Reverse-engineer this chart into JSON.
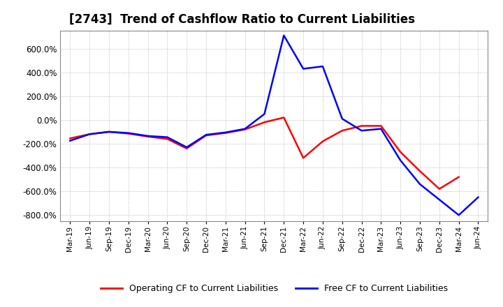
{
  "title": "[2743]  Trend of Cashflow Ratio to Current Liabilities",
  "title_fontsize": 12,
  "legend_labels": [
    "Operating CF to Current Liabilities",
    "Free CF to Current Liabilities"
  ],
  "legend_colors": [
    "#ff0000",
    "#0000ff"
  ],
  "ylim": [
    -850,
    750
  ],
  "yticks": [
    -800,
    -600,
    -400,
    -200,
    0,
    200,
    400,
    600
  ],
  "background_color": "#ffffff",
  "grid_color": "#aaaaaa",
  "x_labels": [
    "Mar-19",
    "Jun-19",
    "Sep-19",
    "Dec-19",
    "Mar-20",
    "Jun-20",
    "Sep-20",
    "Dec-20",
    "Mar-21",
    "Jun-21",
    "Sep-21",
    "Dec-21",
    "Mar-22",
    "Jun-22",
    "Sep-22",
    "Dec-22",
    "Mar-23",
    "Jun-23",
    "Sep-23",
    "Dec-23",
    "Mar-24",
    "Jun-24"
  ],
  "operating_cf": [
    -155,
    -120,
    -100,
    -115,
    -140,
    -160,
    -240,
    -130,
    -110,
    -80,
    -20,
    20,
    -320,
    -180,
    -90,
    -50,
    -50,
    -270,
    -430,
    -580,
    -480,
    null
  ],
  "free_cf": [
    -175,
    -120,
    -100,
    -110,
    -135,
    -145,
    -230,
    -125,
    -105,
    -75,
    50,
    710,
    430,
    450,
    10,
    -90,
    -75,
    -340,
    -540,
    -670,
    -800,
    -650
  ]
}
